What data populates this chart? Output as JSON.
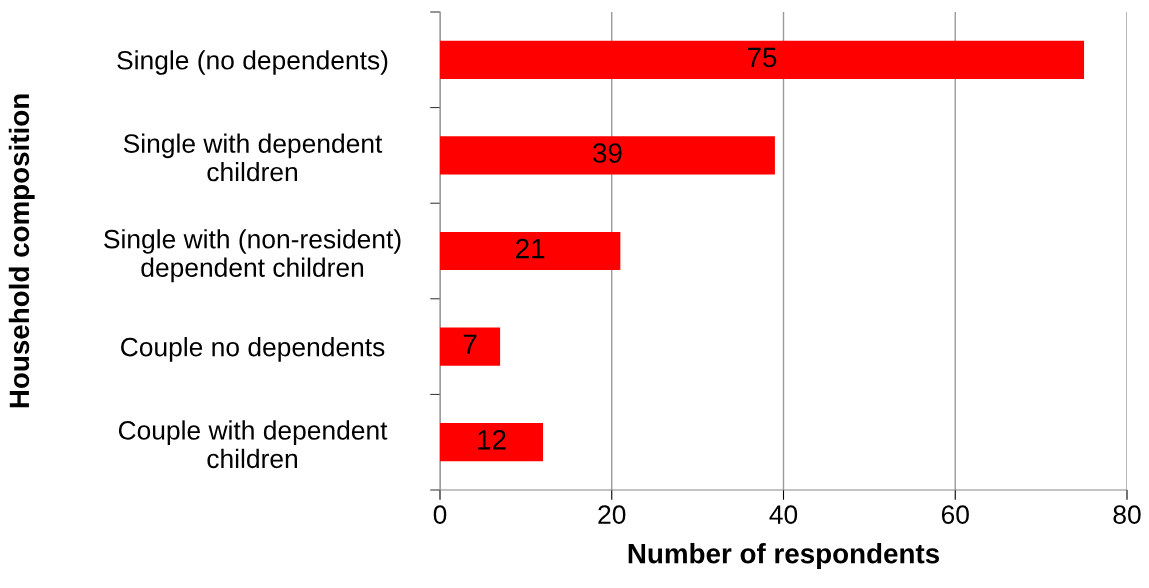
{
  "chart_data": {
    "type": "bar",
    "orientation": "horizontal",
    "xlabel": "Number of respondents",
    "ylabel": "Household composition",
    "categories": [
      "Single (no dependents)",
      "Single with dependent\nchildren",
      "Single with (non-resident)\ndependent children",
      "Couple no dependents",
      "Couple with dependent\nchildren"
    ],
    "values": [
      75,
      39,
      21,
      7,
      12
    ],
    "color": "#ff0000",
    "xlim": [
      0,
      80
    ],
    "xticks": [
      0,
      20,
      40,
      60,
      80
    ],
    "grid": "x",
    "data_labels": true
  }
}
